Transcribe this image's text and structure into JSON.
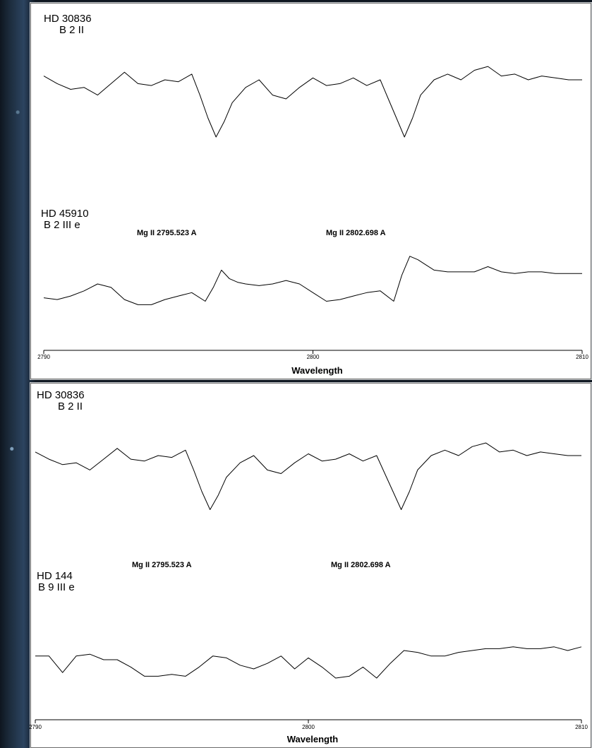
{
  "chart_data": [
    {
      "type": "line",
      "xlabel": "Wavelength",
      "xlim": [
        2790,
        2810
      ],
      "x_ticks": [
        "2790",
        "2800",
        "2810"
      ],
      "annotations": [
        "Mg II 2795.523 A",
        "Mg II 2802.698 A"
      ],
      "series": [
        {
          "name": "HD 30836",
          "subtitle": "B 2 II",
          "x": [
            2790,
            2790.5,
            2791,
            2791.5,
            2792,
            2792.5,
            2793,
            2793.5,
            2794,
            2794.5,
            2795,
            2795.5,
            2795.8,
            2796.1,
            2796.4,
            2796.7,
            2797,
            2797.5,
            2798,
            2798.5,
            2799,
            2799.5,
            2800,
            2800.5,
            2801,
            2801.5,
            2802,
            2802.5,
            2802.8,
            2803.1,
            2803.4,
            2803.7,
            2804,
            2804.5,
            2805,
            2805.5,
            2806,
            2806.5,
            2807,
            2807.5,
            2808,
            2808.5,
            2809,
            2809.5,
            2810
          ],
          "y": [
            0.62,
            0.58,
            0.55,
            0.56,
            0.52,
            0.58,
            0.64,
            0.58,
            0.57,
            0.6,
            0.59,
            0.63,
            0.52,
            0.4,
            0.3,
            0.38,
            0.48,
            0.56,
            0.6,
            0.52,
            0.5,
            0.56,
            0.61,
            0.57,
            0.58,
            0.61,
            0.57,
            0.6,
            0.5,
            0.4,
            0.3,
            0.4,
            0.52,
            0.6,
            0.63,
            0.6,
            0.65,
            0.67,
            0.62,
            0.63,
            0.6,
            0.62,
            0.61,
            0.6,
            0.6
          ]
        },
        {
          "name": "HD 45910",
          "subtitle": "B 2 III e",
          "x": [
            2790,
            2790.5,
            2791,
            2791.5,
            2792,
            2792.5,
            2793,
            2793.5,
            2794,
            2794.5,
            2795,
            2795.5,
            2796,
            2796.3,
            2796.6,
            2796.9,
            2797.2,
            2797.5,
            2798,
            2798.5,
            2799,
            2799.5,
            2800,
            2800.5,
            2801,
            2801.5,
            2802,
            2802.5,
            2803,
            2803.3,
            2803.6,
            2803.9,
            2804.2,
            2804.5,
            2805,
            2805.5,
            2806,
            2806.5,
            2807,
            2807.5,
            2808,
            2808.5,
            2809,
            2809.5,
            2810
          ],
          "y": [
            0.32,
            0.31,
            0.33,
            0.36,
            0.4,
            0.38,
            0.31,
            0.28,
            0.28,
            0.31,
            0.33,
            0.35,
            0.3,
            0.38,
            0.48,
            0.43,
            0.41,
            0.4,
            0.39,
            0.4,
            0.42,
            0.4,
            0.35,
            0.3,
            0.31,
            0.33,
            0.35,
            0.36,
            0.3,
            0.45,
            0.56,
            0.54,
            0.51,
            0.48,
            0.47,
            0.47,
            0.47,
            0.5,
            0.47,
            0.46,
            0.47,
            0.47,
            0.46,
            0.46,
            0.46
          ]
        }
      ]
    },
    {
      "type": "line",
      "xlabel": "Wavelength",
      "xlim": [
        2790,
        2810
      ],
      "x_ticks": [
        "2790",
        "2800",
        "2810"
      ],
      "annotations": [
        "Mg II 2795.523 A",
        "Mg II 2802.698 A"
      ],
      "series": [
        {
          "name": "HD 30836",
          "subtitle": "B 2 II",
          "x": [
            2790,
            2790.5,
            2791,
            2791.5,
            2792,
            2792.5,
            2793,
            2793.5,
            2794,
            2794.5,
            2795,
            2795.5,
            2795.8,
            2796.1,
            2796.4,
            2796.7,
            2797,
            2797.5,
            2798,
            2798.5,
            2799,
            2799.5,
            2800,
            2800.5,
            2801,
            2801.5,
            2802,
            2802.5,
            2802.8,
            2803.1,
            2803.4,
            2803.7,
            2804,
            2804.5,
            2805,
            2805.5,
            2806,
            2806.5,
            2807,
            2807.5,
            2808,
            2808.5,
            2809,
            2809.5,
            2810
          ],
          "y": [
            0.62,
            0.58,
            0.55,
            0.56,
            0.52,
            0.58,
            0.64,
            0.58,
            0.57,
            0.6,
            0.59,
            0.63,
            0.52,
            0.4,
            0.3,
            0.38,
            0.48,
            0.56,
            0.6,
            0.52,
            0.5,
            0.56,
            0.61,
            0.57,
            0.58,
            0.61,
            0.57,
            0.6,
            0.5,
            0.4,
            0.3,
            0.4,
            0.52,
            0.6,
            0.63,
            0.6,
            0.65,
            0.67,
            0.62,
            0.63,
            0.6,
            0.62,
            0.61,
            0.6,
            0.6
          ]
        },
        {
          "name": "HD 144",
          "subtitle": "B 9 III e",
          "x": [
            2790,
            2790.5,
            2791,
            2791.5,
            2792,
            2792.5,
            2793,
            2793.5,
            2794,
            2794.5,
            2795,
            2795.5,
            2796,
            2796.5,
            2797,
            2797.5,
            2798,
            2798.5,
            2799,
            2799.5,
            2800,
            2800.5,
            2801,
            2801.5,
            2802,
            2802.5,
            2803,
            2803.5,
            2804,
            2804.5,
            2805,
            2805.5,
            2806,
            2806.5,
            2807,
            2807.5,
            2808,
            2808.5,
            2809,
            2809.5,
            2810
          ],
          "y": [
            0.42,
            0.42,
            0.33,
            0.42,
            0.43,
            0.4,
            0.4,
            0.36,
            0.31,
            0.31,
            0.32,
            0.31,
            0.36,
            0.42,
            0.41,
            0.37,
            0.35,
            0.38,
            0.42,
            0.35,
            0.41,
            0.36,
            0.3,
            0.31,
            0.36,
            0.3,
            0.38,
            0.45,
            0.44,
            0.42,
            0.42,
            0.44,
            0.45,
            0.46,
            0.46,
            0.47,
            0.46,
            0.46,
            0.47,
            0.45,
            0.47
          ]
        }
      ]
    }
  ]
}
